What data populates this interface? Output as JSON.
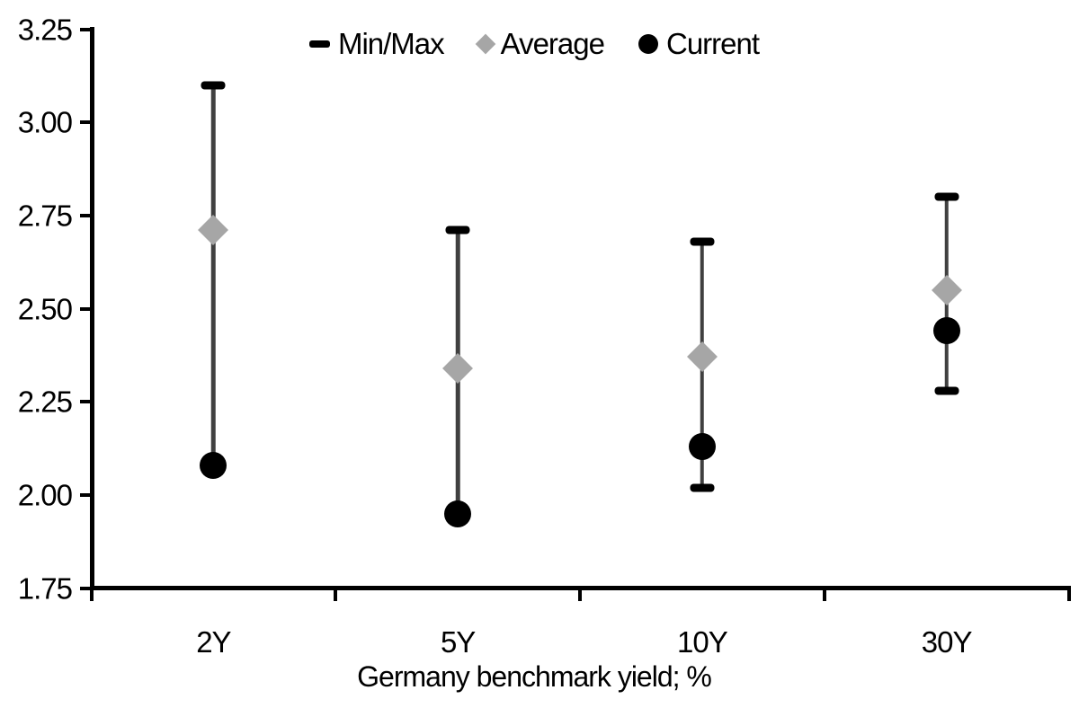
{
  "chart_data": {
    "type": "scatter",
    "subtype": "min-max-range-with-markers",
    "title": "",
    "xlabel": "Germany benchmark yield; %",
    "ylabel": "",
    "categories": [
      "2Y",
      "5Y",
      "10Y",
      "30Y"
    ],
    "y_ticks": [
      "3.25",
      "3.00",
      "2.75",
      "2.50",
      "2.25",
      "2.00",
      "1.75"
    ],
    "ylim": [
      1.75,
      3.25
    ],
    "grid": false,
    "legend_position": "top-center",
    "legend": [
      "Min/Max",
      "Average",
      "Current"
    ],
    "series": [
      {
        "name": "Min/Max",
        "max": [
          3.1,
          2.71,
          2.68,
          2.8
        ],
        "min": [
          2.08,
          1.95,
          2.02,
          2.28
        ]
      },
      {
        "name": "Average",
        "values": [
          2.71,
          2.34,
          2.37,
          2.55
        ]
      },
      {
        "name": "Current",
        "values": [
          2.08,
          1.95,
          2.13,
          2.44
        ]
      }
    ],
    "colors": {
      "minmax_cap": "#000000",
      "range_line": "#404040",
      "average_marker": "#a6a6a6",
      "current_marker": "#000000",
      "axis": "#000000",
      "text": "#000000",
      "background": "#ffffff"
    }
  }
}
